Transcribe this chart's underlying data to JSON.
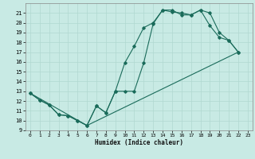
{
  "xlabel": "Humidex (Indice chaleur)",
  "bg_color": "#c8eae4",
  "grid_color": "#b0d8d0",
  "line_color": "#1a6b5a",
  "xlim": [
    -0.5,
    23.5
  ],
  "ylim": [
    9,
    22
  ],
  "xticks": [
    0,
    1,
    2,
    3,
    4,
    5,
    6,
    7,
    8,
    9,
    10,
    11,
    12,
    13,
    14,
    15,
    16,
    17,
    18,
    19,
    20,
    21,
    22,
    23
  ],
  "yticks": [
    9,
    10,
    11,
    12,
    13,
    14,
    15,
    16,
    17,
    18,
    19,
    20,
    21
  ],
  "line1_x": [
    0,
    1,
    2,
    3,
    4,
    5,
    6,
    7,
    8,
    9,
    10,
    11,
    12,
    13,
    14,
    15,
    16,
    17,
    18,
    19,
    20,
    21,
    22
  ],
  "line1_y": [
    12.8,
    12.1,
    11.6,
    10.6,
    10.5,
    10.0,
    9.5,
    11.5,
    10.8,
    13.0,
    15.9,
    17.6,
    19.5,
    20.0,
    21.3,
    21.3,
    20.8,
    20.8,
    21.3,
    21.0,
    19.0,
    18.2,
    17.0
  ],
  "line2_x": [
    0,
    1,
    2,
    3,
    4,
    5,
    6,
    7,
    8,
    9,
    10,
    11,
    12,
    13,
    14,
    15,
    16,
    17,
    18,
    19,
    20,
    21,
    22
  ],
  "line2_y": [
    12.8,
    12.1,
    11.6,
    10.6,
    10.5,
    10.0,
    9.5,
    11.5,
    10.8,
    13.0,
    13.0,
    13.0,
    15.9,
    19.9,
    21.3,
    21.1,
    21.0,
    20.8,
    21.3,
    19.7,
    18.5,
    18.2,
    17.0
  ],
  "line3_x": [
    0,
    6,
    22
  ],
  "line3_y": [
    12.8,
    9.5,
    17.0
  ]
}
